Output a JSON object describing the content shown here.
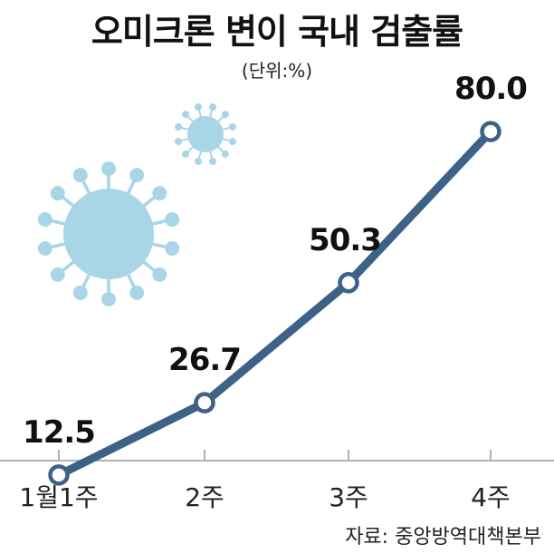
{
  "title": "오미크론 변이 국내 검출률",
  "unit": "(단위:%)",
  "source": "자료: 중앙방역대책본부",
  "colors": {
    "line": "#3d6187",
    "virus": "#a9d6e6",
    "axis": "#999999"
  },
  "chart_data": {
    "type": "line",
    "categories": [
      "1월1주",
      "2주",
      "3주",
      "4주"
    ],
    "values": [
      12.5,
      26.7,
      50.3,
      80.0
    ],
    "value_labels": [
      "12.5",
      "26.7",
      "50.3",
      "80.0"
    ],
    "ylim": [
      0,
      90
    ],
    "grid": false,
    "legend": "none"
  }
}
